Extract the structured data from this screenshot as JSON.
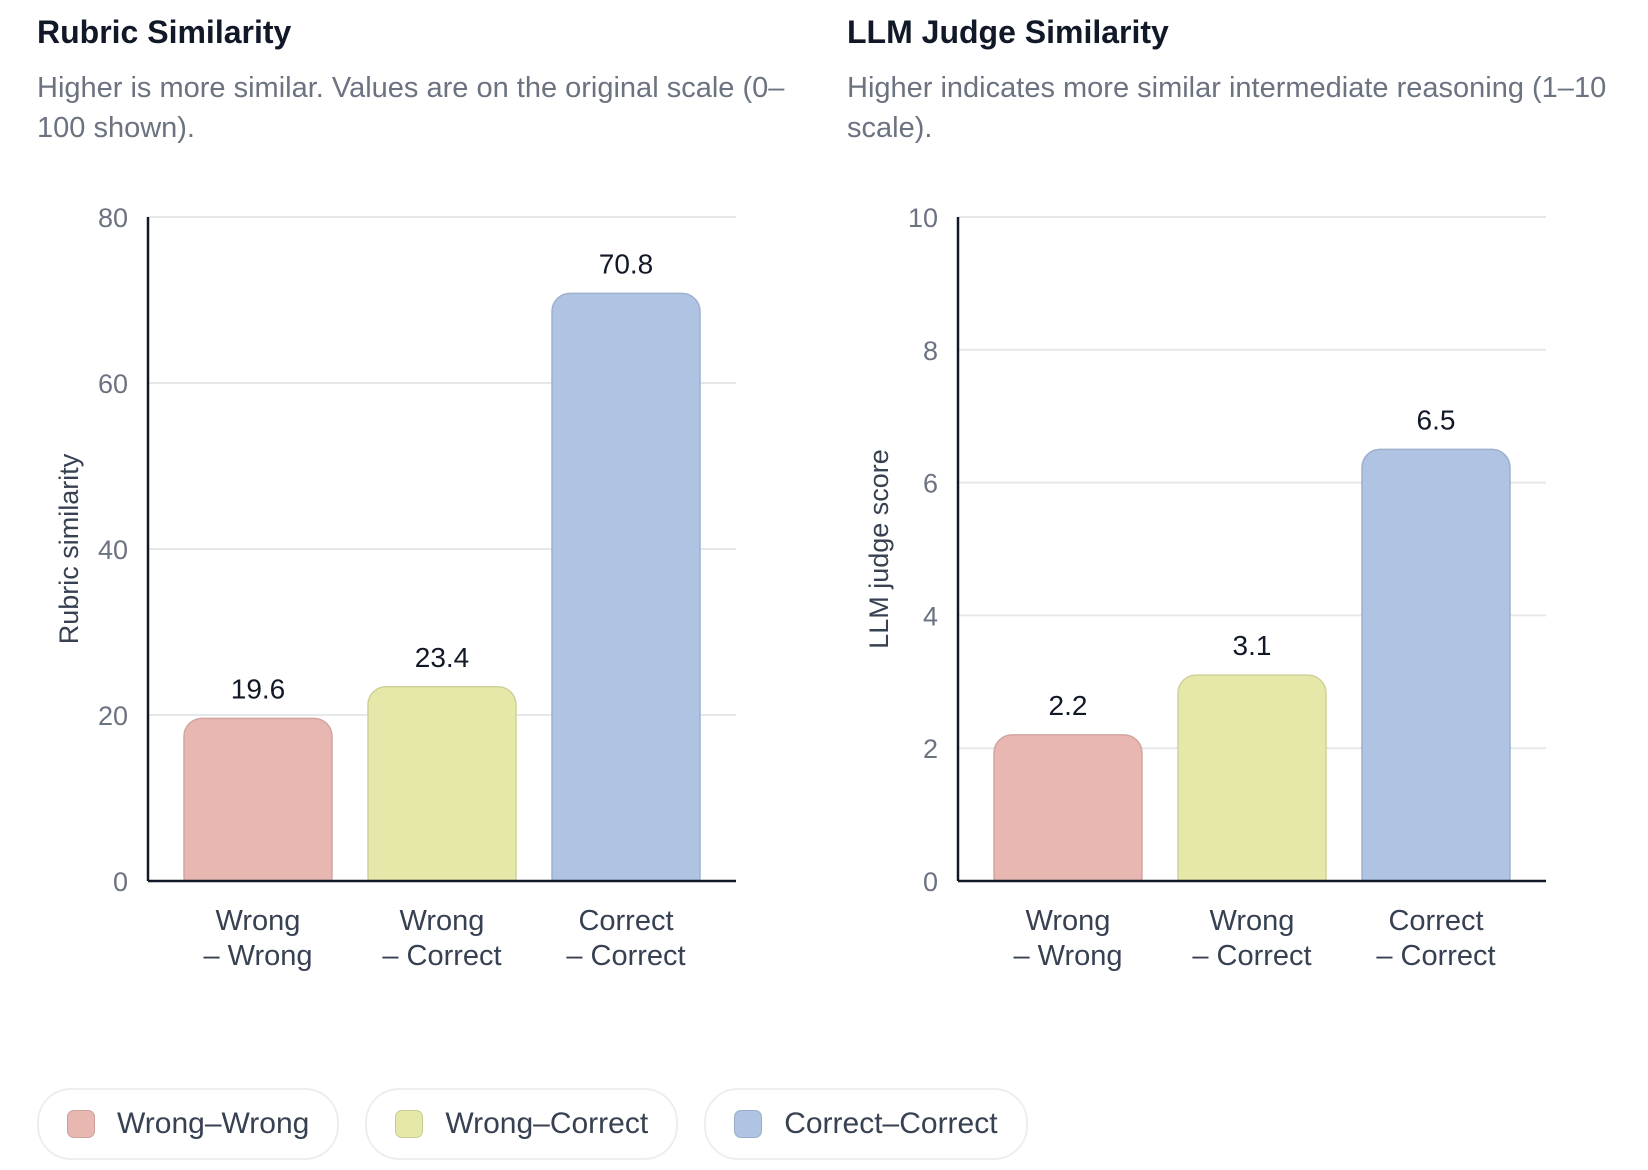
{
  "colors": {
    "Wrong–Wrong": "#e8b7b2",
    "Wrong–Correct": "#e6e8a9",
    "Correct–Correct": "#afc4e3"
  },
  "legend": [
    {
      "label": "Wrong–Wrong",
      "key": "Wrong–Wrong"
    },
    {
      "label": "Wrong–Correct",
      "key": "Wrong–Correct"
    },
    {
      "label": "Correct–Correct",
      "key": "Correct–Correct"
    }
  ],
  "chart_data": [
    {
      "type": "bar",
      "title": "Rubric Similarity",
      "subtitle": "Higher is more similar. Values are on the original scale (0–100 shown).",
      "ylabel": "Rubric similarity",
      "xlabel": "",
      "ylim": [
        0,
        80
      ],
      "yticks": [
        0,
        20,
        40,
        60,
        80
      ],
      "grid": true,
      "categories": [
        [
          "Wrong",
          "– Wrong"
        ],
        [
          "Wrong",
          "– Correct"
        ],
        [
          "Correct",
          "– Correct"
        ]
      ],
      "series_keys": [
        "Wrong–Wrong",
        "Wrong–Correct",
        "Correct–Correct"
      ],
      "values": [
        19.6,
        23.4,
        70.8
      ],
      "value_labels": [
        "19.6",
        "23.4",
        "70.8"
      ]
    },
    {
      "type": "bar",
      "title": "LLM Judge Similarity",
      "subtitle": "Higher indicates more similar intermediate reasoning (1–10 scale).",
      "ylabel": "LLM judge score",
      "xlabel": "",
      "ylim": [
        0,
        10
      ],
      "yticks": [
        0,
        2,
        4,
        6,
        8,
        10
      ],
      "grid": true,
      "categories": [
        [
          "Wrong",
          "– Wrong"
        ],
        [
          "Wrong",
          "– Correct"
        ],
        [
          "Correct",
          "– Correct"
        ]
      ],
      "series_keys": [
        "Wrong–Wrong",
        "Wrong–Correct",
        "Correct–Correct"
      ],
      "values": [
        2.2,
        3.1,
        6.5
      ],
      "value_labels": [
        "2.2",
        "3.1",
        "6.5"
      ]
    }
  ]
}
